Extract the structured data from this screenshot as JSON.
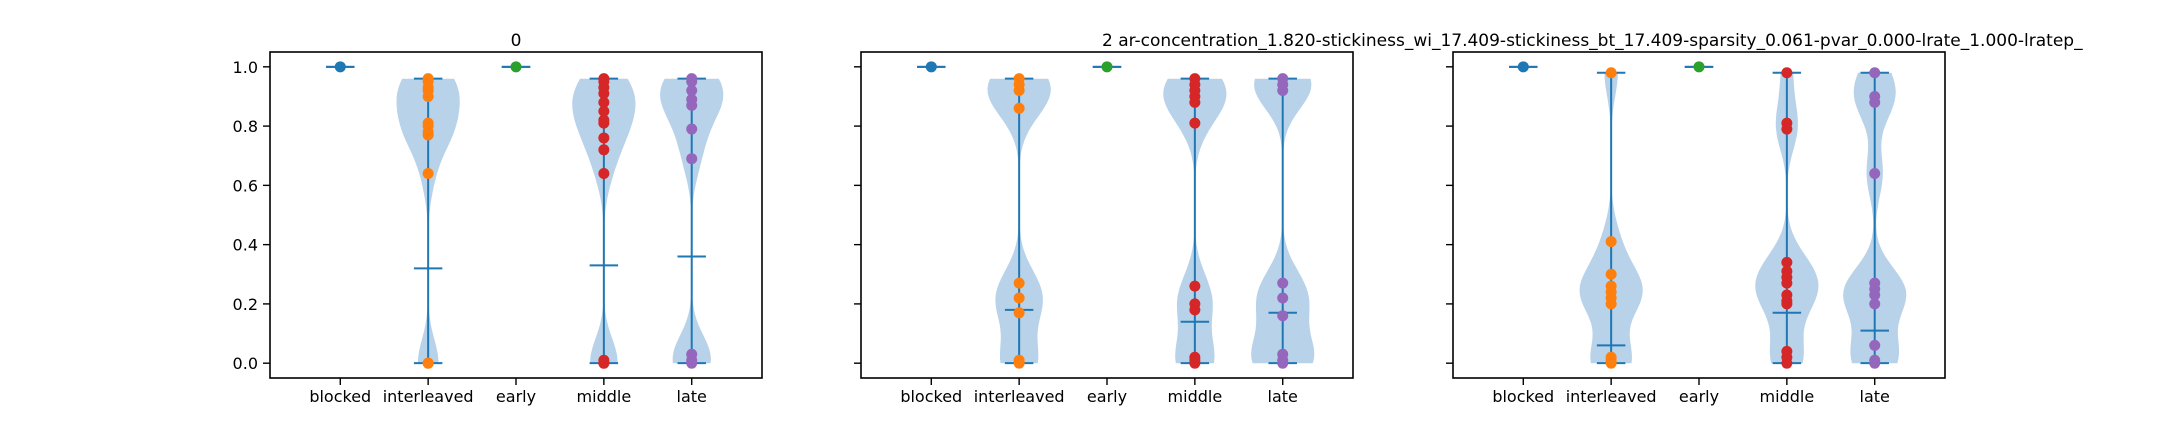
{
  "colors": {
    "violin_fill": "#a6c8e3",
    "stats_line": "#1f77b4",
    "blocked": "#1f77b4",
    "interleaved": "#ff7f0e",
    "early": "#2ca02c",
    "middle": "#d62728",
    "late": "#9467bd"
  },
  "chart_data": [
    {
      "type": "violin",
      "title": "0",
      "categories": [
        "blocked",
        "interleaved",
        "early",
        "middle",
        "late"
      ],
      "ylim": [
        -0.05,
        1.05
      ],
      "yticks": [
        "0.0",
        "0.2",
        "0.4",
        "0.6",
        "0.8",
        "1.0"
      ],
      "show_ytick_labels": true,
      "series": [
        {
          "category": "blocked",
          "min": 1.0,
          "max": 1.0,
          "mean": 1.0,
          "points": [
            1.0
          ]
        },
        {
          "category": "interleaved",
          "min": 0.0,
          "max": 0.96,
          "mean": 0.32,
          "points": [
            0.96,
            0.95,
            0.93,
            0.92,
            0.9,
            0.81,
            0.8,
            0.78,
            0.77,
            0.64,
            0.0,
            0.0
          ]
        },
        {
          "category": "early",
          "min": 1.0,
          "max": 1.0,
          "mean": 1.0,
          "points": [
            1.0
          ]
        },
        {
          "category": "middle",
          "min": 0.0,
          "max": 0.96,
          "mean": 0.33,
          "points": [
            0.96,
            0.95,
            0.93,
            0.91,
            0.88,
            0.85,
            0.82,
            0.81,
            0.76,
            0.72,
            0.64,
            0.01,
            0.0,
            0.0
          ]
        },
        {
          "category": "late",
          "min": 0.0,
          "max": 0.96,
          "mean": 0.36,
          "points": [
            0.96,
            0.95,
            0.92,
            0.89,
            0.87,
            0.79,
            0.69,
            0.03,
            0.01,
            0.0
          ]
        }
      ]
    },
    {
      "type": "violin",
      "title": "2    ar-concentration_1.820-stickiness_wi_17.409-stickiness_bt_17.409-sparsity_0.061-pvar_0.000-lrate_1.000-lratep_",
      "categories": [
        "blocked",
        "interleaved",
        "early",
        "middle",
        "late"
      ],
      "ylim": [
        -0.05,
        1.05
      ],
      "yticks": [
        "0.0",
        "0.2",
        "0.4",
        "0.6",
        "0.8",
        "1.0"
      ],
      "show_ytick_labels": false,
      "series": [
        {
          "category": "blocked",
          "min": 1.0,
          "max": 1.0,
          "mean": 1.0,
          "points": [
            1.0
          ]
        },
        {
          "category": "interleaved",
          "min": 0.0,
          "max": 0.96,
          "mean": 0.18,
          "points": [
            0.96,
            0.94,
            0.92,
            0.86,
            0.27,
            0.22,
            0.17,
            0.01,
            0.0
          ]
        },
        {
          "category": "early",
          "min": 1.0,
          "max": 1.0,
          "mean": 1.0,
          "points": [
            1.0
          ]
        },
        {
          "category": "middle",
          "min": 0.0,
          "max": 0.96,
          "mean": 0.14,
          "points": [
            0.96,
            0.94,
            0.92,
            0.9,
            0.88,
            0.81,
            0.26,
            0.2,
            0.18,
            0.02,
            0.01,
            0.0
          ]
        },
        {
          "category": "late",
          "min": 0.0,
          "max": 0.96,
          "mean": 0.17,
          "points": [
            0.96,
            0.94,
            0.92,
            0.27,
            0.22,
            0.16,
            0.03,
            0.01,
            0.0
          ]
        }
      ]
    },
    {
      "type": "violin",
      "title": "",
      "categories": [
        "blocked",
        "interleaved",
        "early",
        "middle",
        "late"
      ],
      "ylim": [
        -0.05,
        1.05
      ],
      "yticks": [
        "0.0",
        "0.2",
        "0.4",
        "0.6",
        "0.8",
        "1.0"
      ],
      "show_ytick_labels": false,
      "series": [
        {
          "category": "blocked",
          "min": 1.0,
          "max": 1.0,
          "mean": 1.0,
          "points": [
            1.0
          ]
        },
        {
          "category": "interleaved",
          "min": 0.0,
          "max": 0.98,
          "mean": 0.06,
          "points": [
            0.98,
            0.41,
            0.3,
            0.26,
            0.24,
            0.22,
            0.2,
            0.02,
            0.01,
            0.0
          ]
        },
        {
          "category": "early",
          "min": 1.0,
          "max": 1.0,
          "mean": 1.0,
          "points": [
            1.0
          ]
        },
        {
          "category": "middle",
          "min": 0.0,
          "max": 0.98,
          "mean": 0.17,
          "points": [
            0.98,
            0.81,
            0.79,
            0.34,
            0.31,
            0.29,
            0.27,
            0.23,
            0.21,
            0.2,
            0.04,
            0.02,
            0.0
          ]
        },
        {
          "category": "late",
          "min": 0.0,
          "max": 0.98,
          "mean": 0.11,
          "points": [
            0.98,
            0.9,
            0.88,
            0.64,
            0.27,
            0.25,
            0.23,
            0.2,
            0.06,
            0.01,
            0.0
          ]
        }
      ]
    }
  ]
}
